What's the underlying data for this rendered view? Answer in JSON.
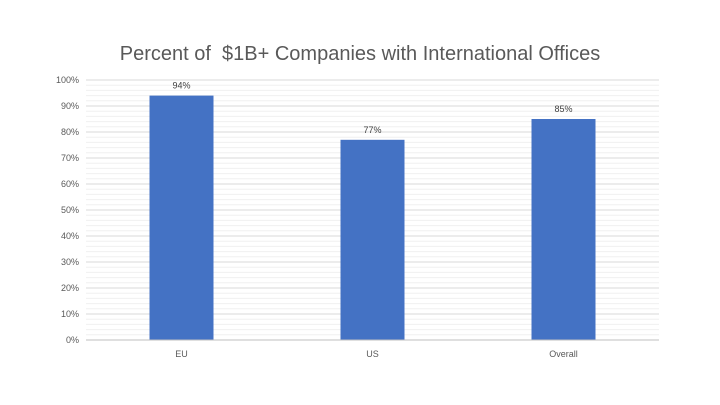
{
  "chart_data": {
    "type": "bar",
    "title": "Percent of  $1B+ Companies with International Offices",
    "categories": [
      "EU",
      "US",
      "Overall"
    ],
    "values": [
      94,
      77,
      85
    ],
    "data_labels": [
      "94%",
      "77%",
      "85%"
    ],
    "ylim": [
      0,
      100
    ],
    "y_ticks": [
      0,
      10,
      20,
      30,
      40,
      50,
      60,
      70,
      80,
      90,
      100
    ],
    "y_tick_labels": [
      "0%",
      "10%",
      "20%",
      "30%",
      "40%",
      "50%",
      "60%",
      "70%",
      "80%",
      "90%",
      "100%"
    ],
    "xlabel": "",
    "ylabel": "",
    "grid": true,
    "legend": "none",
    "bar_color": "#4472C4"
  }
}
